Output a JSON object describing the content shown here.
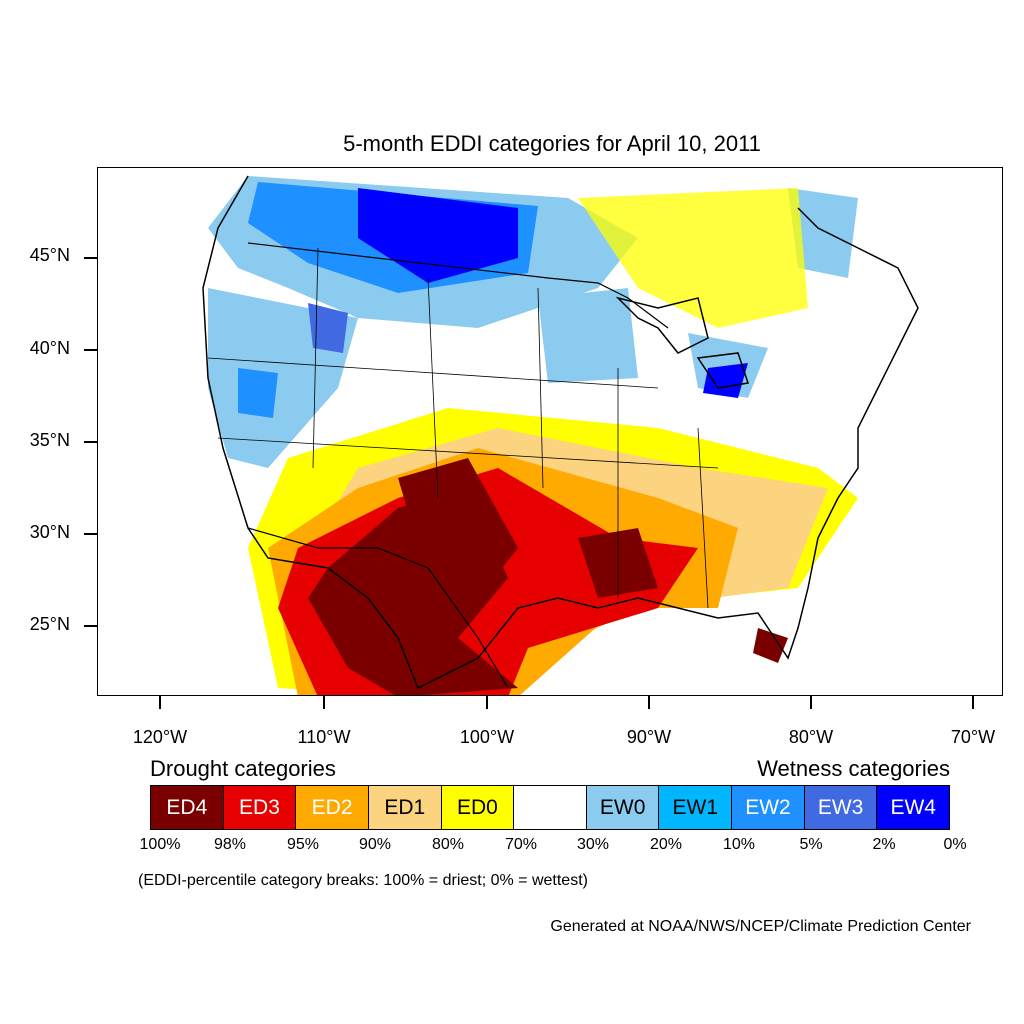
{
  "title": "5-month EDDI categories for April 10, 2011",
  "axes": {
    "lat_labels": [
      "45°N",
      "40°N",
      "35°N",
      "30°N",
      "25°N"
    ],
    "lon_labels": [
      "120°W",
      "110°W",
      "100°W",
      "90°W",
      "80°W",
      "70°W"
    ]
  },
  "legend": {
    "drought_title": "Drought categories",
    "wetness_title": "Wetness categories",
    "categories": [
      {
        "label": "ED4",
        "color": "#7a0000",
        "text_color": "#ffffff"
      },
      {
        "label": "ED3",
        "color": "#e60000",
        "text_color": "#ffffff"
      },
      {
        "label": "ED2",
        "color": "#ffaa00",
        "text_color": "#ffffff"
      },
      {
        "label": "ED1",
        "color": "#fcd37f",
        "text_color": "#000000"
      },
      {
        "label": "ED0",
        "color": "#ffff00",
        "text_color": "#000000"
      },
      {
        "label": "",
        "color": "#ffffff",
        "text_color": "#000000"
      },
      {
        "label": "EW0",
        "color": "#8ccbf0",
        "text_color": "#000000"
      },
      {
        "label": "EW1",
        "color": "#00b7ff",
        "text_color": "#000000"
      },
      {
        "label": "EW2",
        "color": "#1e90ff",
        "text_color": "#ffffff"
      },
      {
        "label": "EW3",
        "color": "#4169e1",
        "text_color": "#ffffff"
      },
      {
        "label": "EW4",
        "color": "#0000ff",
        "text_color": "#ffffff"
      }
    ],
    "breaks": [
      "100%",
      "98%",
      "95%",
      "90%",
      "80%",
      "70%",
      "30%",
      "20%",
      "10%",
      "5%",
      "2%",
      "0%"
    ]
  },
  "note": "(EDDI-percentile category breaks: 100% = driest; 0% = wettest)",
  "credit": "Generated at NOAA/NWS/NCEP/Climate Prediction Center"
}
